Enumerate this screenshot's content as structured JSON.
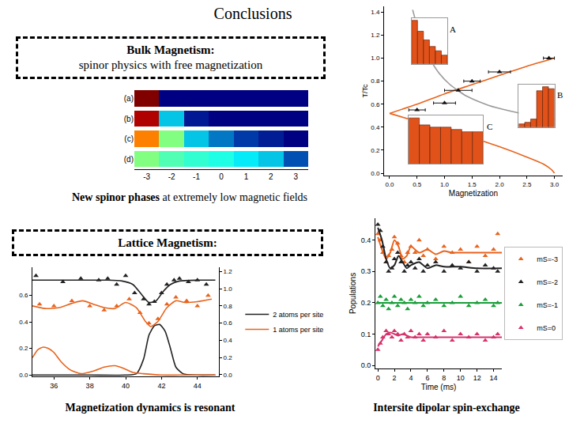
{
  "slide": {
    "title": "Conclusions",
    "boxes": [
      {
        "heading": "Bulk Magnetism:",
        "text": "spinor physics with free magnetization"
      },
      {
        "heading": "Lattice Magnetism:"
      }
    ],
    "captions": [
      {
        "bold": "New spinor phases",
        "rest": "at extremely low magnetic fields"
      },
      {
        "bold": "Magnetization dynamics is resonant"
      },
      {
        "bold": "Intersite dipolar spin-exchange"
      }
    ]
  },
  "chart_data": [
    {
      "type": "heatmap",
      "x": [
        -3,
        -2,
        -1,
        0,
        1,
        2,
        3
      ],
      "categories": [
        "(a)",
        "(b)",
        "(c)",
        "(d)"
      ],
      "cells": [
        [
          1.0,
          0,
          0,
          0,
          0,
          0,
          0
        ],
        [
          0.95,
          0.3,
          0.05,
          0,
          0,
          0,
          0
        ],
        [
          0.75,
          0.5,
          0.3,
          0.2,
          0.12,
          0.06,
          0
        ],
        [
          0.5,
          0.45,
          0.42,
          0.4,
          0.35,
          0.3,
          0.15
        ]
      ],
      "zlim": [
        0,
        1
      ],
      "xlim": [
        -3.5,
        3.5
      ],
      "xticks": [
        -3,
        -2,
        -1,
        0,
        1,
        2,
        3
      ],
      "grid": false
    },
    {
      "type": "line",
      "x_label": "Magnetization",
      "y_label": "T/Tc",
      "xlim": [
        -0.1,
        3.15
      ],
      "ylim": [
        -0.02,
        1.45
      ],
      "xticks": [
        {
          "value": 0,
          "label": "0.0"
        },
        0.5,
        {
          "value": 1,
          "label": "1.0"
        },
        1.5,
        {
          "value": 2,
          "label": "2.0"
        },
        2.5,
        {
          "value": 3,
          "label": "3.0"
        }
      ],
      "yticks": [
        {
          "value": 0,
          "label": "0.0"
        },
        0.2,
        0.4,
        0.6,
        0.8,
        {
          "value": 1,
          "label": "1.0"
        },
        1.2,
        1.4
      ],
      "grid": false,
      "series": [
        {
          "type": "line",
          "color": "#e8631c",
          "x": [
            0,
            0.5,
            1,
            1.5,
            2,
            2.5,
            3
          ],
          "values": [
            0.52,
            0.6,
            0.69,
            0.77,
            0.85,
            0.93,
            1.0
          ]
        },
        {
          "type": "line",
          "color": "#e8631c",
          "x": [
            0,
            0.5,
            1,
            1.5,
            2,
            2.5,
            2.8,
            2.95,
            3.0
          ],
          "values": [
            0.52,
            0.45,
            0.38,
            0.31,
            0.23,
            0.14,
            0.08,
            0.03,
            0
          ]
        },
        {
          "type": "line",
          "color": "#9a9a9a",
          "x": [
            0.42,
            0.5,
            0.6,
            0.75,
            0.9,
            1.1,
            1.4,
            1.8,
            2.2,
            2.6,
            3.0
          ],
          "values": [
            1.42,
            1.28,
            1.13,
            0.98,
            0.87,
            0.77,
            0.67,
            0.59,
            0.54,
            0.5,
            0.47
          ]
        },
        {
          "type": "scatter",
          "marker": "triangle-up",
          "color": "#111111",
          "x": [
            0.5,
            1.0,
            1.25,
            1.5,
            2.0,
            2.9
          ],
          "values": [
            0.55,
            0.61,
            0.72,
            0.8,
            0.88,
            1.0
          ],
          "x_error": [
            0.15,
            0.2,
            0.25,
            0.15,
            0.2,
            0.1
          ]
        }
      ],
      "insets": [
        {
          "type": "bar",
          "title": "A",
          "categories": [
            null,
            null,
            null,
            null,
            null,
            null
          ],
          "values": [
            1.0,
            0.75,
            0.55,
            0.4,
            0.3,
            0.2
          ],
          "ylim": [
            0,
            1.05
          ],
          "color": "#e0521a",
          "tick_labels": false
        },
        {
          "type": "bar",
          "title": "B",
          "categories": [
            null,
            null,
            null,
            null,
            null,
            null
          ],
          "values": [
            0.08,
            0.12,
            0.2,
            0.9,
            1.0,
            0.95
          ],
          "ylim": [
            0,
            1.05
          ],
          "color": "#e0521a",
          "tick_labels": false
        },
        {
          "type": "bar",
          "title": "C",
          "categories": [
            null,
            null,
            null,
            null,
            null,
            null,
            null
          ],
          "values": [
            1.0,
            0.85,
            0.8,
            0.8,
            0.75,
            0.7,
            0.7
          ],
          "ylim": [
            0,
            1.05
          ],
          "color": "#e0521a",
          "tick_labels": false
        }
      ]
    },
    {
      "type": "line",
      "xlim": [
        34.8,
        45.2
      ],
      "ylim": [
        -0.01,
        0.81
      ],
      "y2lim": [
        -0.02,
        1.25
      ],
      "xticks": [
        36,
        38,
        40,
        42,
        44
      ],
      "yticks": [
        {
          "value": 0,
          "label": "0.0"
        },
        0.2,
        0.4,
        0.6
      ],
      "y2ticks": [
        {
          "value": 0,
          "label": "0.0"
        },
        0.2,
        0.4,
        0.6,
        0.8,
        {
          "value": 1,
          "label": "1.0"
        },
        1.2
      ],
      "grid": false,
      "legend": "right",
      "series": [
        {
          "type": "line",
          "axis": "y2",
          "color": "#e8631c",
          "x": [
            34.8,
            35.5,
            36.3,
            37,
            37.6,
            38.2,
            38.8,
            39.4,
            40,
            40.6,
            41.1,
            41.4,
            41.8,
            42.3,
            42.8,
            43.3,
            44,
            44.8
          ],
          "values": [
            0.8,
            0.77,
            0.78,
            0.83,
            0.86,
            0.82,
            0.78,
            0.77,
            0.84,
            0.78,
            0.62,
            0.56,
            0.62,
            0.78,
            0.86,
            0.84,
            0.85,
            0.88
          ]
        },
        {
          "type": "scatter",
          "axis": "y2",
          "marker": "triangle-up",
          "color": "#e8631c",
          "x": [
            35.2,
            36,
            37,
            38,
            38.8,
            39.5,
            40.2,
            40.8,
            41.3,
            41.8,
            42.3,
            42.8,
            43.4,
            44,
            44.6
          ],
          "values": [
            0.82,
            0.8,
            0.86,
            0.8,
            0.75,
            0.8,
            0.88,
            0.72,
            0.6,
            0.65,
            0.82,
            0.9,
            0.86,
            0.8,
            0.92
          ]
        },
        {
          "type": "line",
          "axis": "y2",
          "color": "#222222",
          "x": [
            34.8,
            36,
            37,
            38,
            39,
            39.8,
            40.4,
            40.9,
            41.3,
            41.7,
            42.1,
            42.5,
            43,
            44,
            45
          ],
          "values": [
            1.1,
            1.1,
            1.1,
            1.1,
            1.1,
            1.09,
            1.05,
            0.93,
            0.84,
            0.86,
            0.97,
            1.05,
            1.09,
            1.1,
            1.1
          ]
        },
        {
          "type": "scatter",
          "axis": "y2",
          "marker": "triangle-up",
          "color": "#222222",
          "x": [
            35,
            36.5,
            37.5,
            38.5,
            39,
            39.5,
            40,
            40.5,
            41,
            41.3,
            41.6,
            42,
            42.3,
            42.7,
            43,
            43.5,
            44,
            44.5
          ],
          "values": [
            1.15,
            1.08,
            1.12,
            1.1,
            1.12,
            1.05,
            1.15,
            0.95,
            0.88,
            0.82,
            0.85,
            0.95,
            1.05,
            1.1,
            1.12,
            1.08,
            1.1,
            1.05
          ]
        },
        {
          "type": "line",
          "name": "2 atoms per site",
          "color": "#222222",
          "x": [
            34.8,
            36,
            38,
            40,
            40.6,
            41,
            41.3,
            41.6,
            41.9,
            42.2,
            42.5,
            42.8,
            43.2,
            44,
            45
          ],
          "values": [
            0,
            0,
            0,
            0,
            0.01,
            0.12,
            0.3,
            0.37,
            0.38,
            0.33,
            0.2,
            0.06,
            0.01,
            0,
            0
          ]
        },
        {
          "type": "line",
          "name": "1 atoms per site",
          "color": "#e8631c",
          "x": [
            34.8,
            35.1,
            35.4,
            35.7,
            36,
            36.4,
            36.9,
            37.5,
            38.2,
            38.8,
            39.4,
            39.9,
            40.4,
            41,
            42,
            43,
            45
          ],
          "values": [
            0.13,
            0.19,
            0.21,
            0.2,
            0.17,
            0.1,
            0.04,
            0.01,
            0.03,
            0.06,
            0.07,
            0.05,
            0.02,
            0.01,
            0,
            0,
            0
          ]
        }
      ]
    },
    {
      "type": "line",
      "x_label": "Time (ms)",
      "y_label": "Populations",
      "xlim": [
        -0.3,
        15
      ],
      "ylim": [
        -0.01,
        0.47
      ],
      "xticks": [
        0,
        2,
        4,
        6,
        8,
        10,
        12,
        14
      ],
      "yticks": [
        {
          "value": 0,
          "label": "0.0"
        },
        0.1,
        0.2,
        0.3,
        0.4
      ],
      "grid": false,
      "legend": "right",
      "series": [
        {
          "name": "mS=-3",
          "color": "#e8631c",
          "marker": "triangle-up",
          "x": [
            0,
            0.5,
            1,
            1.5,
            2,
            2.5,
            3,
            3.5,
            4,
            5,
            6,
            7,
            8,
            9,
            10,
            12,
            15
          ],
          "values": [
            0.41,
            0.37,
            0.34,
            0.36,
            0.4,
            0.38,
            0.34,
            0.35,
            0.38,
            0.36,
            0.37,
            0.355,
            0.365,
            0.36,
            0.36,
            0.36,
            0.36
          ],
          "data_x": [
            0,
            0.3,
            0.6,
            1,
            1.3,
            1.7,
            2,
            2.4,
            2.8,
            3.2,
            3.6,
            4,
            4.5,
            5,
            5.5,
            6,
            7,
            8,
            9,
            10,
            11,
            12,
            13,
            14,
            14.5
          ],
          "data_values": [
            0.42,
            0.4,
            0.36,
            0.33,
            0.35,
            0.37,
            0.41,
            0.39,
            0.35,
            0.33,
            0.36,
            0.38,
            0.36,
            0.4,
            0.35,
            0.37,
            0.34,
            0.38,
            0.36,
            0.37,
            0.33,
            0.38,
            0.35,
            0.37,
            0.42
          ]
        },
        {
          "name": "mS=-2",
          "color": "#222222",
          "marker": "triangle-up",
          "x": [
            0,
            0.5,
            1,
            1.5,
            2,
            2.5,
            3,
            3.5,
            4,
            5,
            6,
            7,
            8,
            9,
            10,
            12,
            15
          ],
          "values": [
            0.44,
            0.4,
            0.34,
            0.31,
            0.32,
            0.35,
            0.33,
            0.31,
            0.32,
            0.33,
            0.31,
            0.32,
            0.315,
            0.315,
            0.315,
            0.31,
            0.31
          ],
          "data_x": [
            0,
            0.3,
            0.6,
            1,
            1.3,
            1.7,
            2,
            2.4,
            2.8,
            3.2,
            3.6,
            4,
            4.5,
            5,
            5.5,
            6,
            7,
            8,
            9,
            10,
            11,
            12,
            13,
            14,
            14.5
          ],
          "data_values": [
            0.45,
            0.43,
            0.38,
            0.33,
            0.3,
            0.31,
            0.34,
            0.36,
            0.33,
            0.3,
            0.32,
            0.33,
            0.31,
            0.34,
            0.3,
            0.32,
            0.33,
            0.3,
            0.32,
            0.31,
            0.33,
            0.3,
            0.32,
            0.31,
            0.3
          ]
        },
        {
          "name": "mS=-1",
          "color": "#1a9e3a",
          "marker": "triangle-up",
          "x": [
            0,
            0.5,
            1,
            1.5,
            2,
            2.5,
            3,
            3.5,
            4,
            5,
            6,
            7,
            8,
            9,
            10,
            12,
            15
          ],
          "values": [
            0.2,
            0.2,
            0.2,
            0.2,
            0.2,
            0.2,
            0.2,
            0.2,
            0.2,
            0.2,
            0.2,
            0.2,
            0.2,
            0.2,
            0.2,
            0.2,
            0.2
          ],
          "data_x": [
            0,
            0.3,
            0.6,
            1,
            1.3,
            1.7,
            2,
            2.4,
            2.8,
            3.2,
            3.6,
            4,
            4.5,
            5,
            5.5,
            6,
            7,
            8,
            9,
            10,
            11,
            12,
            13,
            14,
            14.5
          ],
          "data_values": [
            0.2,
            0.22,
            0.19,
            0.21,
            0.18,
            0.2,
            0.22,
            0.19,
            0.21,
            0.2,
            0.18,
            0.21,
            0.2,
            0.22,
            0.19,
            0.2,
            0.21,
            0.19,
            0.2,
            0.22,
            0.19,
            0.2,
            0.21,
            0.19,
            0.2
          ]
        },
        {
          "name": "mS=0",
          "color": "#d6336c",
          "marker": "triangle-up",
          "x": [
            0,
            0.5,
            1,
            1.5,
            2,
            2.5,
            3,
            3.5,
            4,
            5,
            6,
            7,
            8,
            9,
            10,
            12,
            15
          ],
          "values": [
            0.06,
            0.08,
            0.1,
            0.105,
            0.1,
            0.095,
            0.1,
            0.095,
            0.09,
            0.09,
            0.09,
            0.09,
            0.09,
            0.09,
            0.09,
            0.09,
            0.09
          ],
          "data_x": [
            0,
            0.3,
            0.6,
            1,
            1.3,
            1.7,
            2,
            2.4,
            2.8,
            3.2,
            3.6,
            4,
            4.5,
            5,
            5.5,
            6,
            7,
            8,
            9,
            10,
            11,
            12,
            13,
            14,
            14.5
          ],
          "data_values": [
            0.05,
            0.07,
            0.09,
            0.11,
            0.1,
            0.09,
            0.11,
            0.1,
            0.08,
            0.1,
            0.09,
            0.11,
            0.09,
            0.1,
            0.08,
            0.1,
            0.09,
            0.11,
            0.08,
            0.1,
            0.09,
            0.1,
            0.08,
            0.09,
            0.1
          ]
        }
      ]
    }
  ]
}
